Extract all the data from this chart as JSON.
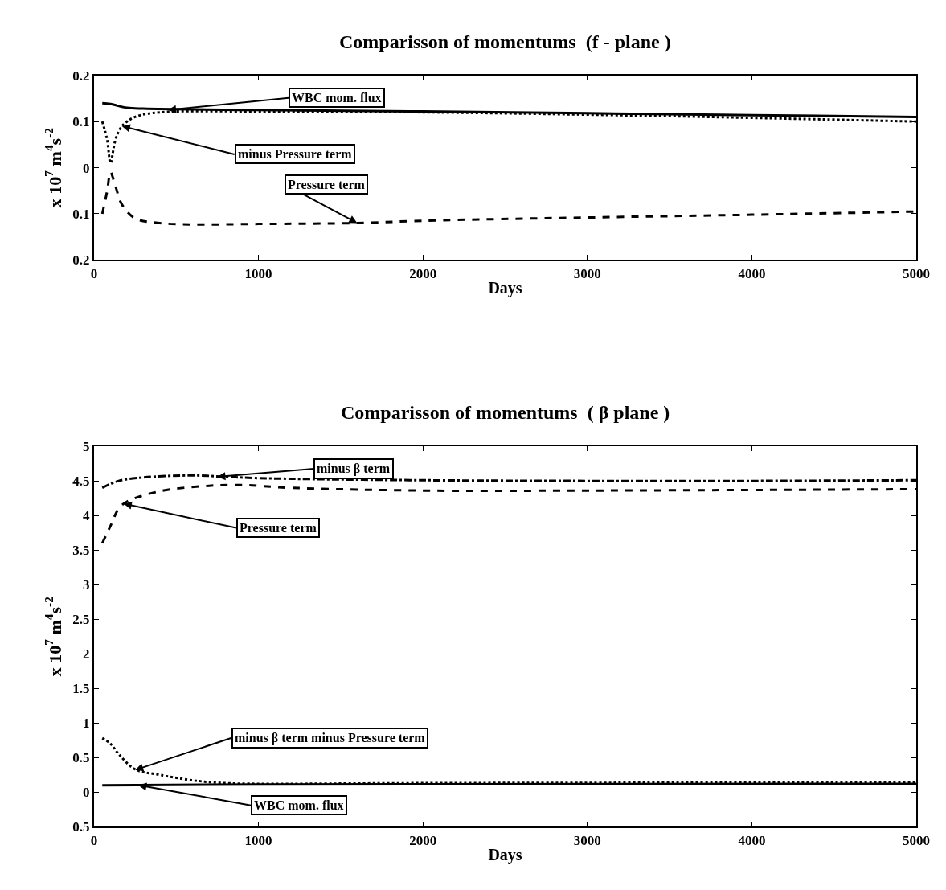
{
  "chart_data": [
    {
      "type": "line",
      "title": "Comparisson of momentums  (f - plane )",
      "xlabel": "Days",
      "ylabel": "x 10$^{7}$ m$^{4}$s$^{-2}$",
      "xlim": [
        0,
        5000
      ],
      "xticks": [
        0,
        1000,
        2000,
        3000,
        4000,
        5000
      ],
      "ylim": [
        -0.2,
        0.2
      ],
      "yticks": [
        {
          "value": -0.2,
          "label": "0.2"
        },
        {
          "value": -0.1,
          "label": "0.1"
        },
        0,
        0.1,
        0.2
      ],
      "series": [
        {
          "color": "#000000",
          "line_style": "solid",
          "x": [
            50,
            100,
            200,
            300,
            1000,
            2000,
            3000,
            4000,
            5000
          ],
          "values": [
            0.14,
            0.138,
            0.13,
            0.128,
            0.125,
            0.122,
            0.118,
            0.114,
            0.11
          ]
        },
        {
          "color": "#000000",
          "line_style": "dotted",
          "x": [
            50,
            80,
            100,
            130,
            170,
            250,
            400,
            1000,
            2000,
            3000,
            4000,
            5000
          ],
          "values": [
            0.1,
            0.06,
            0.01,
            0.06,
            0.09,
            0.11,
            0.12,
            0.122,
            0.12,
            0.115,
            0.108,
            0.1
          ]
        },
        {
          "color": "#000000",
          "line_style": "dashed",
          "x": [
            50,
            80,
            100,
            130,
            170,
            250,
            400,
            600,
            1000,
            1600,
            2000,
            3000,
            4000,
            5000
          ],
          "values": [
            -0.1,
            -0.05,
            -0.01,
            -0.04,
            -0.08,
            -0.11,
            -0.12,
            -0.123,
            -0.122,
            -0.12,
            -0.115,
            -0.108,
            -0.102,
            -0.095
          ]
        }
      ],
      "annotations": [
        {
          "text": "WBC mom. flux",
          "x": 450,
          "y": 0.125
        },
        {
          "text": "minus Pressure term",
          "x": 170,
          "y": 0.09
        },
        {
          "text": "Pressure term",
          "x": 1600,
          "y": -0.12
        }
      ]
    },
    {
      "type": "line",
      "title": "Comparisson of momentums  ( β plane )",
      "xlabel": "Days",
      "ylabel": "x 10$^{7}$ m$^{4}$s$^{-2}$",
      "xlim": [
        0,
        5000
      ],
      "xticks": [
        0,
        1000,
        2000,
        3000,
        4000,
        5000
      ],
      "ylim": [
        -0.5,
        5
      ],
      "yticks": [
        {
          "value": -0.5,
          "label": "0.5"
        },
        0,
        0.5,
        1,
        1.5,
        2,
        2.5,
        3,
        3.5,
        4,
        4.5,
        5
      ],
      "series": [
        {
          "color": "#000000",
          "line_style": "dashdot",
          "x": [
            50,
            150,
            300,
            600,
            800,
            1000,
            2000,
            3000,
            4000,
            5000
          ],
          "values": [
            4.4,
            4.5,
            4.55,
            4.58,
            4.56,
            4.54,
            4.51,
            4.5,
            4.5,
            4.51
          ]
        },
        {
          "color": "#000000",
          "line_style": "dashed",
          "x": [
            50,
            100,
            150,
            200,
            400,
            700,
            900,
            1200,
            2000,
            3000,
            5000
          ],
          "values": [
            3.6,
            3.85,
            4.1,
            4.2,
            4.35,
            4.43,
            4.44,
            4.4,
            4.36,
            4.36,
            4.38
          ]
        },
        {
          "color": "#000000",
          "line_style": "dotted",
          "x": [
            50,
            100,
            150,
            250,
            400,
            600,
            800,
            1000,
            2000,
            5000
          ],
          "values": [
            0.78,
            0.7,
            0.55,
            0.33,
            0.25,
            0.17,
            0.13,
            0.12,
            0.13,
            0.14
          ]
        },
        {
          "color": "#000000",
          "line_style": "solid",
          "x": [
            50,
            1000,
            5000
          ],
          "values": [
            0.1,
            0.11,
            0.12
          ]
        }
      ],
      "annotations": [
        {
          "text": "minus β term",
          "x": 750,
          "y": 4.56
        },
        {
          "text": "Pressure term",
          "x": 180,
          "y": 4.17
        },
        {
          "text": "minus β term minus Pressure term",
          "x": 250,
          "y": 0.32
        },
        {
          "text": "WBC mom. flux",
          "x": 270,
          "y": 0.1
        }
      ]
    }
  ]
}
